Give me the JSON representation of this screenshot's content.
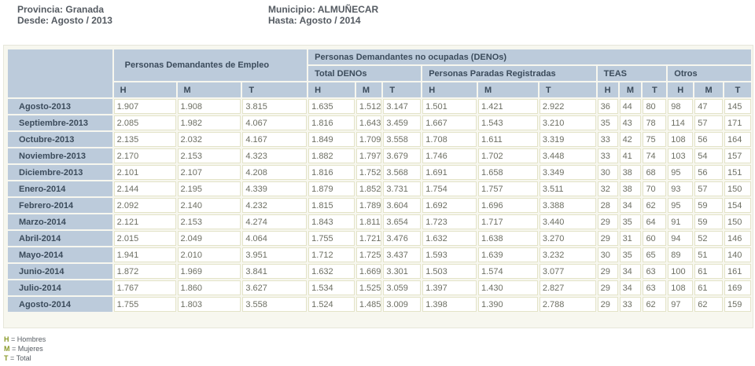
{
  "header": {
    "provincia": "Provincia: Granada",
    "desde": "Desde: Agosto / 2013",
    "municipio": "Municipio: ALMUÑECAR",
    "hasta": "Hasta: Agosto / 2014"
  },
  "table": {
    "group_pde": "Personas Demandantes de Empleo",
    "group_denos": "Personas Demandantes no ocupadas (DENOs)",
    "sub_total_denos": "Total DENOs",
    "sub_ppr": "Personas Paradas Registradas",
    "sub_teas": "TEAS",
    "sub_otros": "Otros",
    "letters": [
      "H",
      "M",
      "T",
      "H",
      "M",
      "T",
      "H",
      "M",
      "T",
      "H",
      "M",
      "T",
      "H",
      "M",
      "T"
    ],
    "rows": [
      {
        "label": "Agosto-2013",
        "v": [
          "1.907",
          "1.908",
          "3.815",
          "1.635",
          "1.512",
          "3.147",
          "1.501",
          "1.421",
          "2.922",
          "36",
          "44",
          "80",
          "98",
          "47",
          "145"
        ]
      },
      {
        "label": "Septiembre-2013",
        "v": [
          "2.085",
          "1.982",
          "4.067",
          "1.816",
          "1.643",
          "3.459",
          "1.667",
          "1.543",
          "3.210",
          "35",
          "43",
          "78",
          "114",
          "57",
          "171"
        ]
      },
      {
        "label": "Octubre-2013",
        "v": [
          "2.135",
          "2.032",
          "4.167",
          "1.849",
          "1.709",
          "3.558",
          "1.708",
          "1.611",
          "3.319",
          "33",
          "42",
          "75",
          "108",
          "56",
          "164"
        ]
      },
      {
        "label": "Noviembre-2013",
        "v": [
          "2.170",
          "2.153",
          "4.323",
          "1.882",
          "1.797",
          "3.679",
          "1.746",
          "1.702",
          "3.448",
          "33",
          "41",
          "74",
          "103",
          "54",
          "157"
        ]
      },
      {
        "label": "Diciembre-2013",
        "v": [
          "2.101",
          "2.107",
          "4.208",
          "1.816",
          "1.752",
          "3.568",
          "1.691",
          "1.658",
          "3.349",
          "30",
          "38",
          "68",
          "95",
          "56",
          "151"
        ]
      },
      {
        "label": "Enero-2014",
        "v": [
          "2.144",
          "2.195",
          "4.339",
          "1.879",
          "1.852",
          "3.731",
          "1.754",
          "1.757",
          "3.511",
          "32",
          "38",
          "70",
          "93",
          "57",
          "150"
        ]
      },
      {
        "label": "Febrero-2014",
        "v": [
          "2.092",
          "2.140",
          "4.232",
          "1.815",
          "1.789",
          "3.604",
          "1.692",
          "1.696",
          "3.388",
          "28",
          "34",
          "62",
          "95",
          "59",
          "154"
        ]
      },
      {
        "label": "Marzo-2014",
        "v": [
          "2.121",
          "2.153",
          "4.274",
          "1.843",
          "1.811",
          "3.654",
          "1.723",
          "1.717",
          "3.440",
          "29",
          "35",
          "64",
          "91",
          "59",
          "150"
        ]
      },
      {
        "label": "Abril-2014",
        "v": [
          "2.015",
          "2.049",
          "4.064",
          "1.755",
          "1.721",
          "3.476",
          "1.632",
          "1.638",
          "3.270",
          "29",
          "31",
          "60",
          "94",
          "52",
          "146"
        ]
      },
      {
        "label": "Mayo-2014",
        "v": [
          "1.941",
          "2.010",
          "3.951",
          "1.712",
          "1.725",
          "3.437",
          "1.593",
          "1.639",
          "3.232",
          "30",
          "35",
          "65",
          "89",
          "51",
          "140"
        ]
      },
      {
        "label": "Junio-2014",
        "v": [
          "1.872",
          "1.969",
          "3.841",
          "1.632",
          "1.669",
          "3.301",
          "1.503",
          "1.574",
          "3.077",
          "29",
          "34",
          "63",
          "100",
          "61",
          "161"
        ]
      },
      {
        "label": "Julio-2014",
        "v": [
          "1.767",
          "1.860",
          "3.627",
          "1.534",
          "1.525",
          "3.059",
          "1.397",
          "1.430",
          "2.827",
          "29",
          "34",
          "63",
          "108",
          "61",
          "169"
        ]
      },
      {
        "label": "Agosto-2014",
        "v": [
          "1.755",
          "1.803",
          "3.558",
          "1.524",
          "1.485",
          "3.009",
          "1.398",
          "1.390",
          "2.788",
          "29",
          "33",
          "62",
          "97",
          "62",
          "159"
        ]
      }
    ]
  },
  "legend": [
    {
      "key": "H",
      "text": " = Hombres"
    },
    {
      "key": "M",
      "text": " = Mujeres"
    },
    {
      "key": "T",
      "text": " = Total"
    }
  ],
  "colors": {
    "header_bg": "#bccbdb",
    "header_text": "#3b4b5b",
    "cell_border": "#e3e3c8",
    "cell_text": "#6d6f63",
    "legend_key": "#8a9a2a"
  }
}
